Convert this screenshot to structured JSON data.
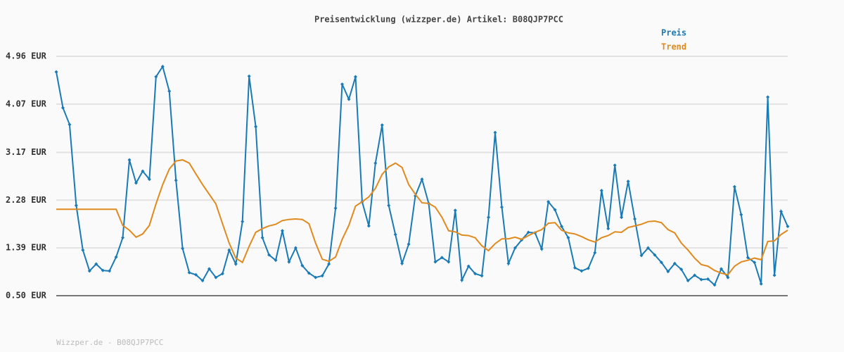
{
  "chart_data": {
    "type": "line",
    "title": "Preisentwicklung (wizzper.de) Artikel: B08QJP7PCC",
    "footer": "Wizzper.de - B08QJP7PCC",
    "ylim": [
      0.5,
      4.96
    ],
    "yticks": [
      {
        "value": 0.5,
        "label": "0.50 EUR"
      },
      {
        "value": 1.39,
        "label": "1.39 EUR"
      },
      {
        "value": 2.28,
        "label": "2.28 EUR"
      },
      {
        "value": 3.17,
        "label": "3.17 EUR"
      },
      {
        "value": 4.07,
        "label": "4.07 EUR"
      },
      {
        "value": 4.96,
        "label": "4.96 EUR"
      }
    ],
    "grid": true,
    "legend": "top-right",
    "series": [
      {
        "name": "Preis",
        "color": "#1a7ab5",
        "markers": true,
        "values": [
          4.67,
          4.0,
          3.69,
          2.18,
          1.35,
          0.96,
          1.09,
          0.97,
          0.96,
          1.22,
          1.58,
          3.03,
          2.6,
          2.82,
          2.67,
          4.58,
          4.77,
          4.31,
          2.65,
          1.38,
          0.93,
          0.89,
          0.78,
          1.0,
          0.84,
          0.91,
          1.35,
          1.09,
          1.88,
          4.59,
          3.65,
          1.58,
          1.26,
          1.16,
          1.71,
          1.13,
          1.39,
          1.06,
          0.92,
          0.84,
          0.87,
          1.09,
          2.13,
          4.44,
          4.16,
          4.58,
          2.25,
          1.8,
          2.97,
          3.68,
          2.18,
          1.64,
          1.1,
          1.46,
          2.36,
          2.67,
          2.22,
          1.13,
          1.21,
          1.13,
          2.09,
          0.79,
          1.05,
          0.91,
          0.87,
          1.96,
          3.54,
          2.15,
          1.1,
          1.39,
          1.54,
          1.68,
          1.67,
          1.37,
          2.25,
          2.1,
          1.79,
          1.58,
          1.02,
          0.96,
          1.01,
          1.3,
          2.46,
          1.75,
          2.93,
          1.96,
          2.63,
          1.93,
          1.25,
          1.39,
          1.26,
          1.12,
          0.95,
          1.1,
          0.99,
          0.78,
          0.88,
          0.8,
          0.81,
          0.7,
          1.0,
          0.84,
          2.53,
          2.01,
          1.21,
          1.12,
          0.72,
          4.2,
          0.88,
          2.07,
          1.79
        ]
      },
      {
        "name": "Trend",
        "color": "#e08a1e",
        "markers": false,
        "values": [
          2.11,
          2.11,
          2.11,
          2.11,
          2.11,
          2.11,
          2.11,
          2.11,
          2.11,
          2.11,
          1.81,
          1.72,
          1.59,
          1.65,
          1.81,
          2.21,
          2.57,
          2.86,
          3.01,
          3.03,
          2.97,
          2.77,
          2.57,
          2.39,
          2.21,
          1.84,
          1.48,
          1.2,
          1.12,
          1.42,
          1.68,
          1.75,
          1.8,
          1.83,
          1.9,
          1.92,
          1.93,
          1.92,
          1.84,
          1.48,
          1.18,
          1.14,
          1.22,
          1.55,
          1.81,
          2.17,
          2.25,
          2.34,
          2.5,
          2.76,
          2.9,
          2.97,
          2.89,
          2.57,
          2.39,
          2.23,
          2.22,
          2.15,
          1.96,
          1.71,
          1.69,
          1.63,
          1.62,
          1.58,
          1.43,
          1.34,
          1.47,
          1.56,
          1.56,
          1.59,
          1.55,
          1.62,
          1.68,
          1.73,
          1.85,
          1.86,
          1.72,
          1.67,
          1.65,
          1.6,
          1.54,
          1.5,
          1.58,
          1.62,
          1.69,
          1.68,
          1.77,
          1.8,
          1.83,
          1.88,
          1.89,
          1.86,
          1.73,
          1.67,
          1.48,
          1.35,
          1.2,
          1.08,
          1.05,
          0.97,
          0.92,
          0.89,
          1.05,
          1.13,
          1.16,
          1.2,
          1.17,
          1.51,
          1.52,
          1.64,
          1.72
        ]
      }
    ]
  }
}
